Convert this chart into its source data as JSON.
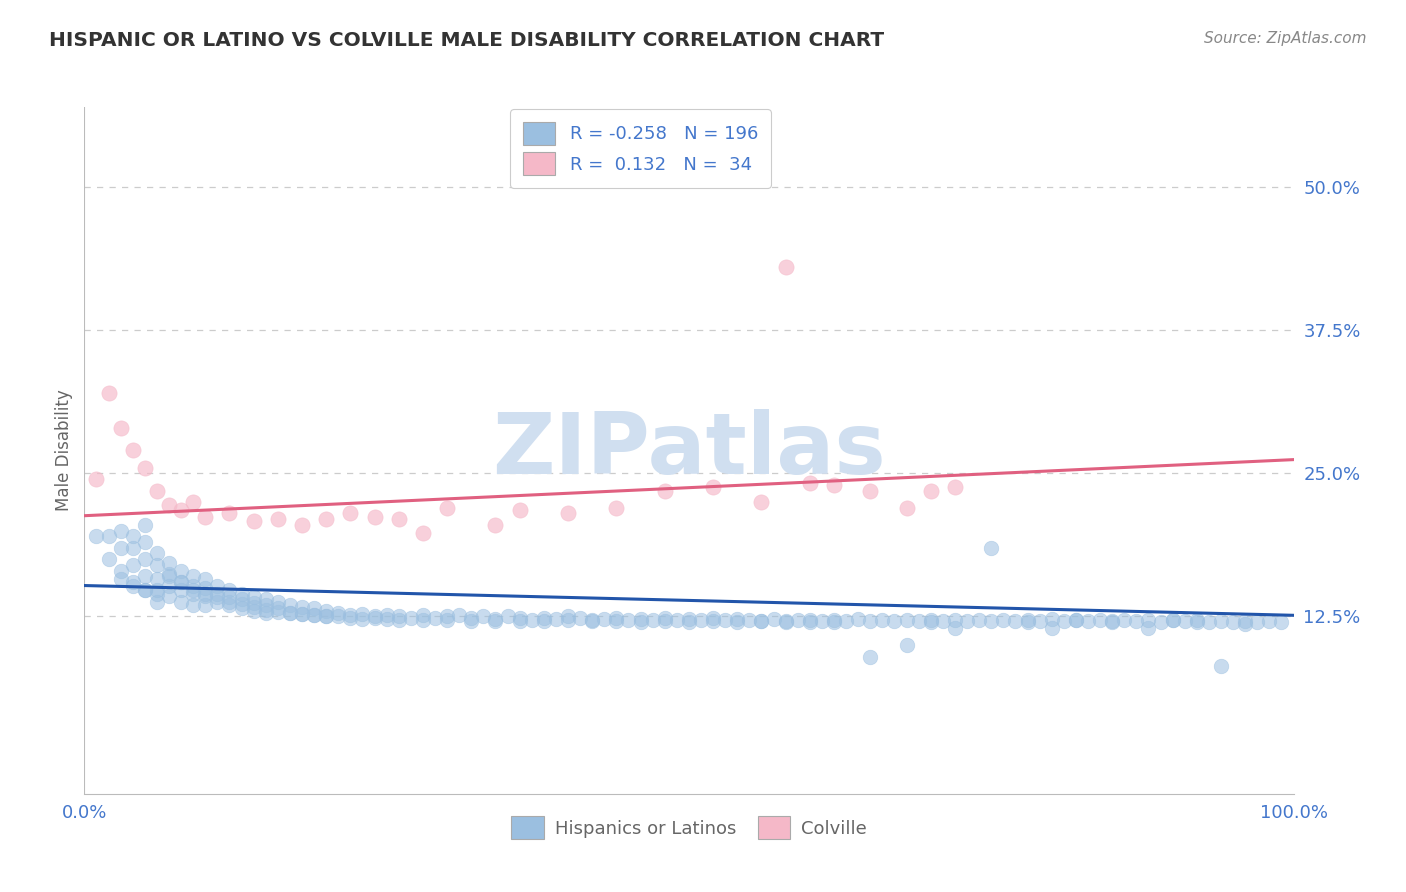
{
  "title": "HISPANIC OR LATINO VS COLVILLE MALE DISABILITY CORRELATION CHART",
  "source_text": "Source: ZipAtlas.com",
  "ylabel": "Male Disability",
  "watermark": "ZIPatlas",
  "blue_R": -0.258,
  "blue_N": 196,
  "pink_R": 0.132,
  "pink_N": 34,
  "blue_label": "Hispanics or Latinos",
  "pink_label": "Colville",
  "ylim_low": -0.03,
  "ylim_high": 0.57,
  "ytick_vals": [
    0.0,
    0.125,
    0.25,
    0.375,
    0.5
  ],
  "ytick_labels": [
    "",
    "12.5%",
    "25.0%",
    "37.5%",
    "50.0%"
  ],
  "xtick_vals": [
    0.0,
    0.1,
    0.2,
    0.3,
    0.4,
    0.5,
    0.6,
    0.7,
    0.8,
    0.9,
    1.0
  ],
  "xtick_labels": [
    "0.0%",
    "",
    "",
    "",
    "",
    "",
    "",
    "",
    "",
    "",
    "100.0%"
  ],
  "grid_color": "#cccccc",
  "blue_scatter_color": "#9bbfe0",
  "blue_line_color": "#2255aa",
  "pink_scatter_color": "#f5b8c8",
  "pink_line_color": "#e06080",
  "bg_color": "#ffffff",
  "title_color": "#333333",
  "axis_label_color": "#666666",
  "tick_label_color": "#4477cc",
  "watermark_color": "#d0dff0",
  "legend_text_color": "#4477cc",
  "blue_trend_y0": 0.152,
  "blue_trend_y1": 0.126,
  "pink_trend_y0": 0.213,
  "pink_trend_y1": 0.262,
  "blue_x": [
    0.01,
    0.02,
    0.02,
    0.03,
    0.03,
    0.03,
    0.04,
    0.04,
    0.04,
    0.04,
    0.05,
    0.05,
    0.05,
    0.05,
    0.05,
    0.06,
    0.06,
    0.06,
    0.06,
    0.06,
    0.07,
    0.07,
    0.07,
    0.07,
    0.08,
    0.08,
    0.08,
    0.08,
    0.09,
    0.09,
    0.09,
    0.09,
    0.1,
    0.1,
    0.1,
    0.1,
    0.11,
    0.11,
    0.11,
    0.12,
    0.12,
    0.12,
    0.13,
    0.13,
    0.13,
    0.14,
    0.14,
    0.14,
    0.15,
    0.15,
    0.15,
    0.16,
    0.16,
    0.17,
    0.17,
    0.18,
    0.18,
    0.19,
    0.19,
    0.2,
    0.2,
    0.21,
    0.22,
    0.23,
    0.24,
    0.25,
    0.26,
    0.27,
    0.28,
    0.29,
    0.3,
    0.31,
    0.32,
    0.33,
    0.34,
    0.35,
    0.36,
    0.37,
    0.38,
    0.39,
    0.4,
    0.41,
    0.42,
    0.43,
    0.44,
    0.45,
    0.46,
    0.47,
    0.48,
    0.49,
    0.5,
    0.51,
    0.52,
    0.53,
    0.54,
    0.55,
    0.56,
    0.57,
    0.58,
    0.59,
    0.6,
    0.61,
    0.62,
    0.63,
    0.64,
    0.65,
    0.66,
    0.67,
    0.68,
    0.69,
    0.7,
    0.71,
    0.72,
    0.73,
    0.74,
    0.75,
    0.76,
    0.77,
    0.78,
    0.79,
    0.8,
    0.81,
    0.82,
    0.83,
    0.84,
    0.85,
    0.86,
    0.87,
    0.88,
    0.89,
    0.9,
    0.91,
    0.92,
    0.93,
    0.94,
    0.95,
    0.96,
    0.97,
    0.98,
    0.99,
    0.03,
    0.04,
    0.05,
    0.06,
    0.07,
    0.08,
    0.09,
    0.1,
    0.11,
    0.12,
    0.13,
    0.14,
    0.15,
    0.16,
    0.17,
    0.18,
    0.19,
    0.2,
    0.21,
    0.22,
    0.23,
    0.24,
    0.25,
    0.26,
    0.28,
    0.3,
    0.32,
    0.34,
    0.36,
    0.38,
    0.4,
    0.42,
    0.44,
    0.46,
    0.48,
    0.5,
    0.52,
    0.54,
    0.56,
    0.58,
    0.6,
    0.62,
    0.65,
    0.68,
    0.7,
    0.72,
    0.75,
    0.78,
    0.8,
    0.82,
    0.85,
    0.88,
    0.9,
    0.92,
    0.94,
    0.96
  ],
  "blue_y": [
    0.195,
    0.195,
    0.175,
    0.2,
    0.185,
    0.165,
    0.195,
    0.185,
    0.17,
    0.155,
    0.205,
    0.19,
    0.175,
    0.16,
    0.148,
    0.18,
    0.17,
    0.158,
    0.148,
    0.138,
    0.172,
    0.162,
    0.152,
    0.143,
    0.165,
    0.155,
    0.148,
    0.138,
    0.16,
    0.152,
    0.145,
    0.135,
    0.158,
    0.15,
    0.143,
    0.135,
    0.152,
    0.145,
    0.138,
    0.148,
    0.142,
    0.135,
    0.145,
    0.14,
    0.132,
    0.142,
    0.137,
    0.13,
    0.14,
    0.135,
    0.128,
    0.138,
    0.132,
    0.135,
    0.128,
    0.133,
    0.127,
    0.132,
    0.126,
    0.13,
    0.125,
    0.128,
    0.126,
    0.127,
    0.125,
    0.126,
    0.125,
    0.124,
    0.126,
    0.124,
    0.125,
    0.126,
    0.124,
    0.125,
    0.123,
    0.125,
    0.124,
    0.122,
    0.124,
    0.123,
    0.125,
    0.124,
    0.122,
    0.123,
    0.124,
    0.122,
    0.123,
    0.122,
    0.124,
    0.122,
    0.123,
    0.122,
    0.124,
    0.122,
    0.123,
    0.122,
    0.121,
    0.123,
    0.121,
    0.122,
    0.122,
    0.121,
    0.122,
    0.121,
    0.123,
    0.121,
    0.122,
    0.121,
    0.122,
    0.121,
    0.122,
    0.121,
    0.122,
    0.121,
    0.122,
    0.121,
    0.122,
    0.121,
    0.122,
    0.121,
    0.123,
    0.121,
    0.122,
    0.121,
    0.122,
    0.121,
    0.122,
    0.121,
    0.122,
    0.12,
    0.122,
    0.121,
    0.122,
    0.12,
    0.121,
    0.12,
    0.121,
    0.12,
    0.121,
    0.12,
    0.158,
    0.152,
    0.148,
    0.145,
    0.16,
    0.155,
    0.148,
    0.145,
    0.142,
    0.138,
    0.136,
    0.133,
    0.131,
    0.129,
    0.128,
    0.127,
    0.126,
    0.125,
    0.125,
    0.124,
    0.123,
    0.124,
    0.123,
    0.122,
    0.122,
    0.122,
    0.121,
    0.121,
    0.121,
    0.121,
    0.122,
    0.121,
    0.121,
    0.12,
    0.121,
    0.12,
    0.121,
    0.12,
    0.121,
    0.12,
    0.12,
    0.12,
    0.09,
    0.1,
    0.12,
    0.115,
    0.185,
    0.12,
    0.115,
    0.122,
    0.12,
    0.115,
    0.122,
    0.12,
    0.082,
    0.118
  ],
  "pink_x": [
    0.01,
    0.02,
    0.03,
    0.04,
    0.05,
    0.06,
    0.07,
    0.08,
    0.09,
    0.1,
    0.12,
    0.14,
    0.16,
    0.18,
    0.22,
    0.26,
    0.3,
    0.36,
    0.4,
    0.44,
    0.48,
    0.52,
    0.56,
    0.6,
    0.62,
    0.65,
    0.68,
    0.7,
    0.72,
    0.28,
    0.34,
    0.2,
    0.24,
    0.58
  ],
  "pink_y": [
    0.245,
    0.32,
    0.29,
    0.27,
    0.255,
    0.235,
    0.222,
    0.218,
    0.225,
    0.212,
    0.215,
    0.208,
    0.21,
    0.205,
    0.215,
    0.21,
    0.22,
    0.218,
    0.215,
    0.22,
    0.235,
    0.238,
    0.225,
    0.242,
    0.24,
    0.235,
    0.22,
    0.235,
    0.238,
    0.198,
    0.205,
    0.21,
    0.212,
    0.43
  ]
}
